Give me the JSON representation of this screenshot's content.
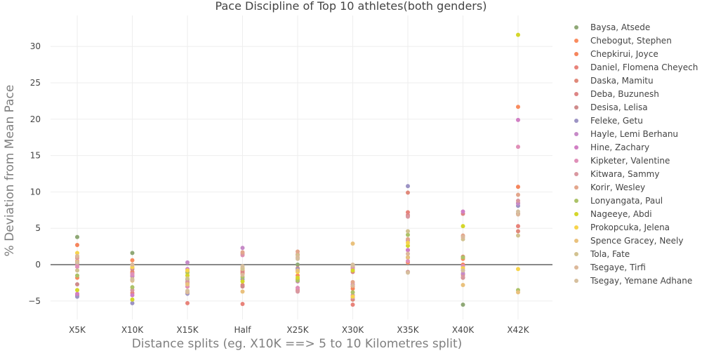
{
  "chart_data": {
    "type": "scatter",
    "title": "Pace Discipline of Top 10 athletes(both genders)",
    "xlabel": "Distance splits (eg. X10K ==> 5 to 10 Kilometres split)",
    "ylabel": "% Deviation from Mean Pace",
    "categories": [
      "X5K",
      "X10K",
      "X15K",
      "Half",
      "X25K",
      "X30K",
      "X35K",
      "X40K",
      "X42K"
    ],
    "ylim": [
      -7.5,
      34
    ],
    "yticks": [
      -5,
      0,
      5,
      10,
      15,
      20,
      25,
      30
    ],
    "zero_line": true,
    "grid": true,
    "legend_position": "right",
    "series": [
      {
        "name": "Baysa, Atsede",
        "color": "#8fa876",
        "values": [
          3.8,
          1.6,
          -2.0,
          -0.5,
          0.0,
          -4.8,
          1.0,
          -5.5,
          7.0
        ]
      },
      {
        "name": "Chebogut, Stephen",
        "color": "#f98b5e",
        "values": [
          -1.8,
          0.6,
          -1.5,
          -0.8,
          -1.5,
          -3.0,
          0.3,
          0.8,
          21.7
        ]
      },
      {
        "name": "Chepkirui, Joyce",
        "color": "#f5855c",
        "values": [
          2.7,
          -1.0,
          -3.0,
          -1.2,
          -2.0,
          -3.3,
          2.0,
          0.0,
          10.7
        ]
      },
      {
        "name": "Daniel, Flomena Cheyech",
        "color": "#e8837a",
        "values": [
          -4.2,
          -3.9,
          -5.3,
          -5.4,
          -3.5,
          -5.5,
          7.2,
          1.1,
          5.3
        ]
      },
      {
        "name": "Daska, Mamitu",
        "color": "#e0897a",
        "values": [
          0.0,
          -1.2,
          -2.5,
          -2.8,
          -0.5,
          -4.8,
          9.9,
          -1.4,
          4.6
        ]
      },
      {
        "name": "Deba, Buzunesh",
        "color": "#dd8585",
        "values": [
          0.5,
          -1.6,
          -1.0,
          -1.0,
          1.4,
          -1.0,
          6.8,
          7.0,
          8.5
        ]
      },
      {
        "name": "Desisa, Lelisa",
        "color": "#cf8b8b",
        "values": [
          -2.7,
          -0.6,
          -3.8,
          -3.0,
          -3.2,
          -0.3,
          -1.0,
          -1.8,
          7.0
        ]
      },
      {
        "name": "Feleke, Getu",
        "color": "#9c93c4",
        "values": [
          -4.4,
          -5.3,
          -4.0,
          -2.0,
          -0.6,
          -0.6,
          10.8,
          -0.8,
          8.1
        ]
      },
      {
        "name": "Hayle, Lemi Berhanu",
        "color": "#c68ac7",
        "values": [
          0.2,
          -1.5,
          0.3,
          2.3,
          -0.8,
          -4.5,
          3.3,
          -1.2,
          8.4
        ]
      },
      {
        "name": "Hine, Zachary",
        "color": "#d17fc4",
        "values": [
          -4.0,
          -4.2,
          -0.6,
          -0.5,
          -2.3,
          -2.7,
          2.0,
          7.3,
          19.9
        ]
      },
      {
        "name": "Kipketer, Valentine",
        "color": "#e08fb8",
        "values": [
          -0.3,
          -1.3,
          -3.0,
          1.3,
          -3.2,
          -0.5,
          0.5,
          -0.2,
          16.2
        ]
      },
      {
        "name": "Kitwara, Sammy",
        "color": "#d998a0",
        "values": [
          0.9,
          -3.5,
          -2.3,
          1.5,
          -3.7,
          -4.2,
          6.6,
          -1.7,
          8.8
        ]
      },
      {
        "name": "Korir, Wesley",
        "color": "#e3a68c",
        "values": [
          1.1,
          -0.4,
          -2.7,
          1.7,
          1.8,
          -2.4,
          3.5,
          4.0,
          9.6
        ]
      },
      {
        "name": "Lonyangata, Paul",
        "color": "#acc268",
        "values": [
          -1.5,
          -3.1,
          -1.1,
          -1.7,
          -2.2,
          -3.8,
          4.1,
          1.0,
          -3.5
        ]
      },
      {
        "name": "Nageeye, Abdi",
        "color": "#d4d62a",
        "values": [
          -3.5,
          -4.8,
          -1.5,
          -2.3,
          -1.8,
          -0.8,
          2.6,
          5.3,
          31.6
        ]
      },
      {
        "name": "Prokopcuka, Jelena",
        "color": "#f7d44c",
        "values": [
          1.6,
          -0.3,
          -0.8,
          -0.5,
          -1.0,
          -4.4,
          3.0,
          -0.5,
          -0.6
        ]
      },
      {
        "name": "Spence Gracey, Neely",
        "color": "#e9c17d",
        "values": [
          0.4,
          -2.2,
          -2.7,
          -3.7,
          -0.8,
          2.9,
          1.0,
          -2.8,
          -3.8
        ]
      },
      {
        "name": "Tola, Fate",
        "color": "#d2c290",
        "values": [
          -0.8,
          -2.0,
          -1.9,
          -0.6,
          1.3,
          -0.1,
          4.6,
          3.5,
          4.0
        ]
      },
      {
        "name": "Tsegaye, Tirfi",
        "color": "#dcb89a",
        "values": [
          1.2,
          0.0,
          -3.8,
          -1.4,
          1.0,
          -2.9,
          1.5,
          3.8,
          6.9
        ]
      },
      {
        "name": "Tsegay, Yemane Adhane",
        "color": "#d6bf9e",
        "values": [
          0.3,
          -2.1,
          -3.6,
          -0.2,
          0.8,
          0.0,
          -1.1,
          -0.8,
          7.3
        ]
      }
    ]
  }
}
